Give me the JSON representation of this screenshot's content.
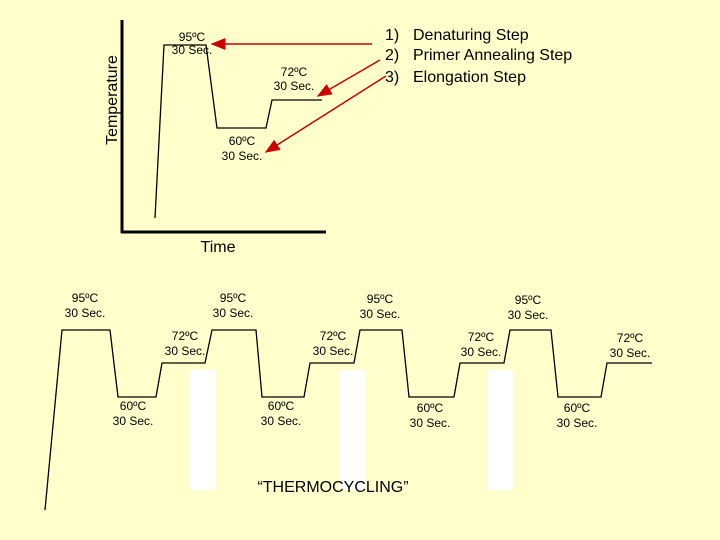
{
  "top_graph": {
    "y_axis_label": "Temperature",
    "x_axis_label": "Time",
    "labels": [
      {
        "temp": "95ºC",
        "duration": "30 Sec."
      },
      {
        "temp": "72ºC",
        "duration": "30 Sec."
      },
      {
        "temp": "60ºC",
        "duration": "30 Sec."
      }
    ],
    "steps": [
      {
        "number": "1)",
        "text": "Denaturing Step"
      },
      {
        "number": "2)",
        "text": "Primer Annealing Step"
      },
      {
        "number": "3)",
        "text": "Elongation Step"
      }
    ]
  },
  "cycles": [
    {
      "denature": {
        "temp": "95ºC",
        "duration": "30 Sec."
      },
      "elongate": {
        "temp": "72ºC",
        "duration": "30 Sec."
      },
      "anneal": {
        "temp": "60ºC",
        "duration": "30 Sec."
      }
    },
    {
      "denature": {
        "temp": "95ºC",
        "duration": "30 Sec."
      },
      "elongate": {
        "temp": "72ºC",
        "duration": "30 Sec."
      },
      "anneal": {
        "temp": "60ºC",
        "duration": "30 Sec."
      }
    },
    {
      "denature": {
        "temp": "95ºC",
        "duration": "30 Sec."
      },
      "elongate": {
        "temp": "72ºC",
        "duration": "30 Sec."
      },
      "anneal": {
        "temp": "60ºC",
        "duration": "30 Sec."
      }
    },
    {
      "denature": {
        "temp": "95ºC",
        "duration": "30 Sec."
      },
      "elongate": {
        "temp": "72ºC",
        "duration": "30 Sec."
      },
      "anneal": {
        "temp": "60ºC",
        "duration": "30 Sec."
      }
    }
  ],
  "caption": "“THERMOCYCLING”"
}
